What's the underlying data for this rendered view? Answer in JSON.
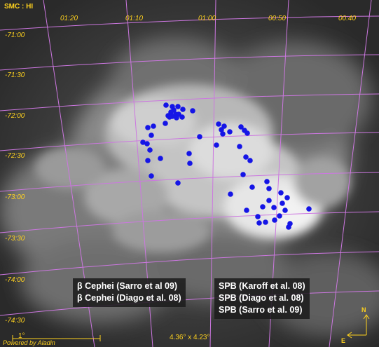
{
  "survey_label": "SMC : HI",
  "ra_ticks": [
    "01:20",
    "01:10",
    "01:00",
    "00:50",
    "00:40"
  ],
  "dec_ticks": [
    "-71:00",
    "-71:30",
    "-72:00",
    "-72:30",
    "-73:00",
    "-73:30",
    "-74:00",
    "-74:30"
  ],
  "legend_left": [
    "β Cephei (Sarro et al 09)",
    "β Cephei (Diago et al. 08)"
  ],
  "legend_right": [
    "SPB (Karoff et al. 08)",
    "SPB (Diago et al. 08)",
    "SPB (Sarro et al. 09)"
  ],
  "scale_label": "1°",
  "powered_by": "Powered by Aladin",
  "fov": "4.36° x 4.23°",
  "compass": {
    "north": "N",
    "east": "E"
  },
  "colors": {
    "grid": "#cc77e0",
    "labels": "#ffd21e",
    "points": "#1515e6"
  },
  "star_count": 61
}
